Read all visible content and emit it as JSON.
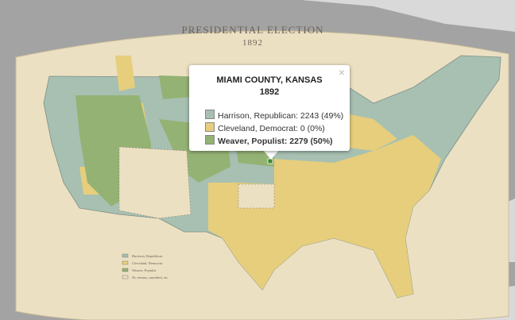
{
  "map": {
    "title": "PRESIDENTIAL ELECTION",
    "year": "1892",
    "legend": [
      "Harrison, Republican",
      "Cleveland, Democrat",
      "Weaver, Populist",
      "No returns, unsettled, etc."
    ]
  },
  "popup": {
    "title": "MIAMI COUNTY, KANSAS",
    "year": "1892",
    "close": "×",
    "rows": [
      "Harrison, Republican: 2243 (49%)",
      "Cleveland, Democrat: 0 (0%)",
      "Weaver, Populist: 2279 (50%)"
    ]
  }
}
